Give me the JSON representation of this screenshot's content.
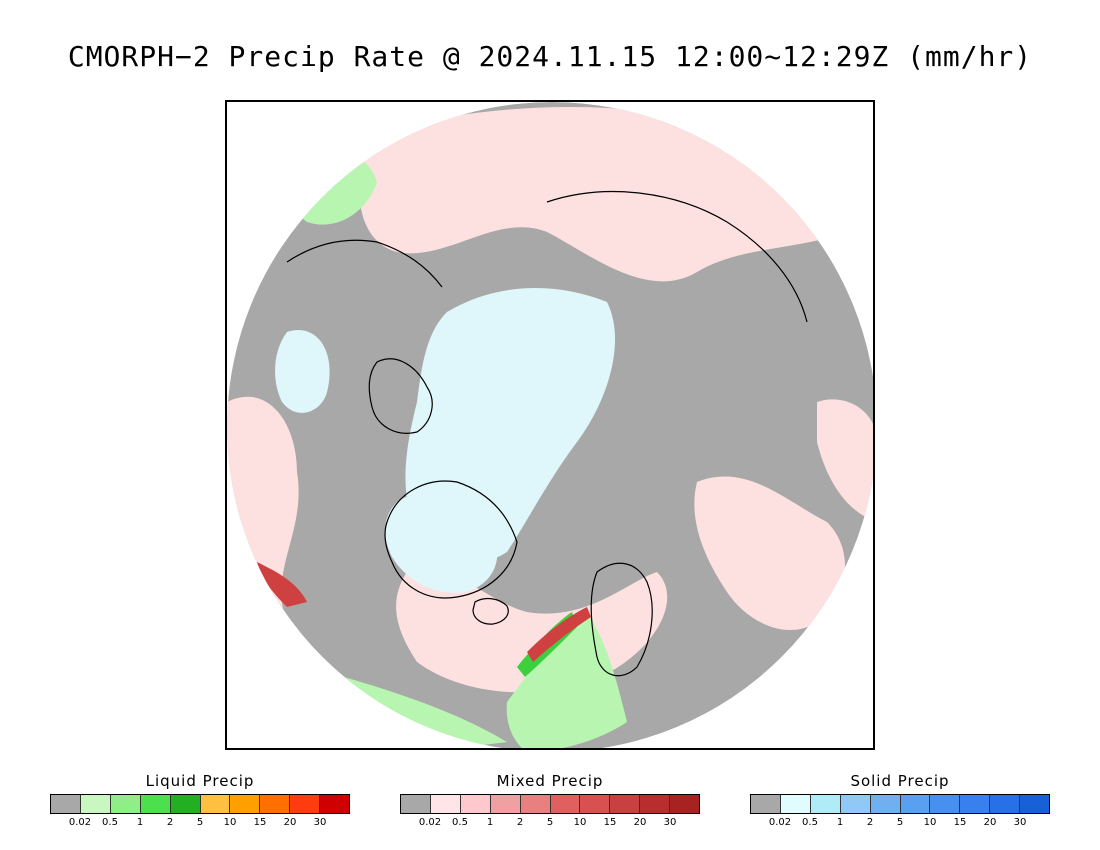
{
  "title": "CMORPH−2 Precip Rate @ 2024.11.15 12:00~12:29Z (mm/hr)",
  "map": {
    "projection": "polar stereographic (north pole)",
    "colors": {
      "no_precip_gray": "#a8a8a8",
      "light_mixed_pink": "#fde0e0",
      "light_snow_cyan": "#dff6fa",
      "light_rain_green": "#b8f5b0",
      "moderate_rain_green": "#3ecf3e",
      "mixed_red": "#cf4040",
      "coastline": "#000000"
    }
  },
  "legends": [
    {
      "title": "Liquid Precip",
      "colors": [
        "#a8a8a8",
        "#c8f8c0",
        "#90ee88",
        "#4ce04c",
        "#22b022",
        "#ffc040",
        "#ffa000",
        "#ff7000",
        "#ff3c10",
        "#d00000"
      ],
      "ticks": [
        "0.02",
        "0.5",
        "1",
        "2",
        "5",
        "10",
        "15",
        "20",
        "30"
      ]
    },
    {
      "title": "Mixed Precip",
      "colors": [
        "#a8a8a8",
        "#ffe4e8",
        "#ffc8cc",
        "#f0a0a0",
        "#e88080",
        "#e06060",
        "#d85050",
        "#c84040",
        "#b82e2e",
        "#a82222"
      ],
      "ticks": [
        "0.02",
        "0.5",
        "1",
        "2",
        "5",
        "10",
        "15",
        "20",
        "30"
      ]
    },
    {
      "title": "Solid Precip",
      "colors": [
        "#a8a8a8",
        "#e0fcff",
        "#b0ecf8",
        "#90c8f8",
        "#70b0f0",
        "#5aa0f0",
        "#4890f0",
        "#3880f0",
        "#2870e8",
        "#1860d8"
      ],
      "ticks": [
        "0.02",
        "0.5",
        "1",
        "2",
        "5",
        "10",
        "15",
        "20",
        "30"
      ]
    }
  ]
}
